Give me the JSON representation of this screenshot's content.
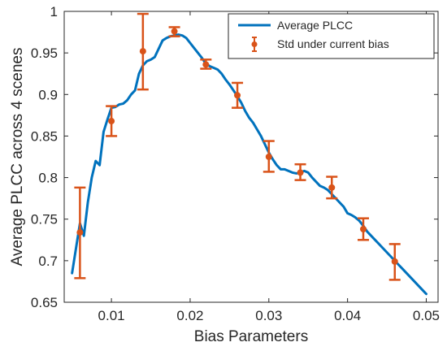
{
  "chart_data": {
    "type": "line",
    "xlabel": "Bias Parameters",
    "ylabel": "Average PLCC across 4 scenes",
    "xlim": [
      0.004,
      0.0515
    ],
    "ylim": [
      0.65,
      1.0
    ],
    "x_ticks": [
      0.01,
      0.02,
      0.03,
      0.04,
      0.05
    ],
    "x_tick_labels": [
      "0.01",
      "0.02",
      "0.03",
      "0.04",
      "0.05"
    ],
    "y_ticks": [
      0.65,
      0.7,
      0.75,
      0.8,
      0.85,
      0.9,
      0.95,
      1.0
    ],
    "y_tick_labels": [
      "0.65",
      "0.7",
      "0.75",
      "0.8",
      "0.85",
      "0.9",
      "0.95",
      "1"
    ],
    "grid": false,
    "legend_position": "top-right",
    "colors": {
      "line": "#0072BD",
      "errorbar": "#D95319",
      "axis": "#262626"
    },
    "series": [
      {
        "name": "Average PLCC",
        "kind": "line",
        "x": [
          0.005,
          0.0055,
          0.006,
          0.0065,
          0.007,
          0.0075,
          0.008,
          0.0085,
          0.009,
          0.0095,
          0.01,
          0.0105,
          0.011,
          0.0115,
          0.012,
          0.0125,
          0.013,
          0.0135,
          0.014,
          0.0145,
          0.015,
          0.0155,
          0.016,
          0.0165,
          0.017,
          0.0175,
          0.018,
          0.0185,
          0.019,
          0.0195,
          0.02,
          0.0205,
          0.021,
          0.0215,
          0.022,
          0.0225,
          0.023,
          0.0235,
          0.024,
          0.0245,
          0.025,
          0.0255,
          0.026,
          0.0265,
          0.027,
          0.0275,
          0.028,
          0.0285,
          0.029,
          0.0295,
          0.03,
          0.0305,
          0.031,
          0.0315,
          0.032,
          0.0325,
          0.033,
          0.0335,
          0.034,
          0.0345,
          0.035,
          0.0355,
          0.036,
          0.0365,
          0.037,
          0.0375,
          0.038,
          0.0385,
          0.039,
          0.0395,
          0.04,
          0.0405,
          0.041,
          0.0415,
          0.042,
          0.0425,
          0.043,
          0.0435,
          0.044,
          0.0445,
          0.045,
          0.0455,
          0.046,
          0.0465,
          0.047,
          0.0475,
          0.048,
          0.0485,
          0.049,
          0.0495,
          0.05
        ],
        "values": [
          0.685,
          0.715,
          0.745,
          0.73,
          0.77,
          0.8,
          0.82,
          0.815,
          0.855,
          0.87,
          0.884,
          0.885,
          0.888,
          0.889,
          0.893,
          0.9,
          0.905,
          0.925,
          0.935,
          0.94,
          0.942,
          0.945,
          0.955,
          0.965,
          0.968,
          0.97,
          0.971,
          0.972,
          0.971,
          0.968,
          0.962,
          0.956,
          0.95,
          0.944,
          0.937,
          0.934,
          0.932,
          0.93,
          0.925,
          0.918,
          0.912,
          0.905,
          0.898,
          0.89,
          0.88,
          0.872,
          0.866,
          0.858,
          0.85,
          0.84,
          0.83,
          0.822,
          0.815,
          0.81,
          0.81,
          0.808,
          0.806,
          0.805,
          0.806,
          0.808,
          0.806,
          0.8,
          0.795,
          0.79,
          0.788,
          0.785,
          0.78,
          0.775,
          0.77,
          0.765,
          0.757,
          0.755,
          0.752,
          0.748,
          0.742,
          0.735,
          0.73,
          0.725,
          0.72,
          0.715,
          0.71,
          0.705,
          0.7,
          0.695,
          0.69,
          0.685,
          0.68,
          0.675,
          0.67,
          0.665,
          0.66
        ]
      },
      {
        "name": "Std under current bias",
        "kind": "errorbar",
        "x": [
          0.006,
          0.01,
          0.014,
          0.018,
          0.022,
          0.026,
          0.03,
          0.034,
          0.038,
          0.042,
          0.046
        ],
        "values": [
          0.734,
          0.868,
          0.952,
          0.976,
          0.936,
          0.899,
          0.825,
          0.806,
          0.788,
          0.738,
          0.699
        ],
        "err_low": [
          0.679,
          0.85,
          0.906,
          0.97,
          0.931,
          0.884,
          0.807,
          0.797,
          0.775,
          0.725,
          0.677
        ],
        "err_high": [
          0.788,
          0.886,
          0.997,
          0.981,
          0.942,
          0.914,
          0.844,
          0.816,
          0.801,
          0.751,
          0.72
        ]
      }
    ]
  }
}
